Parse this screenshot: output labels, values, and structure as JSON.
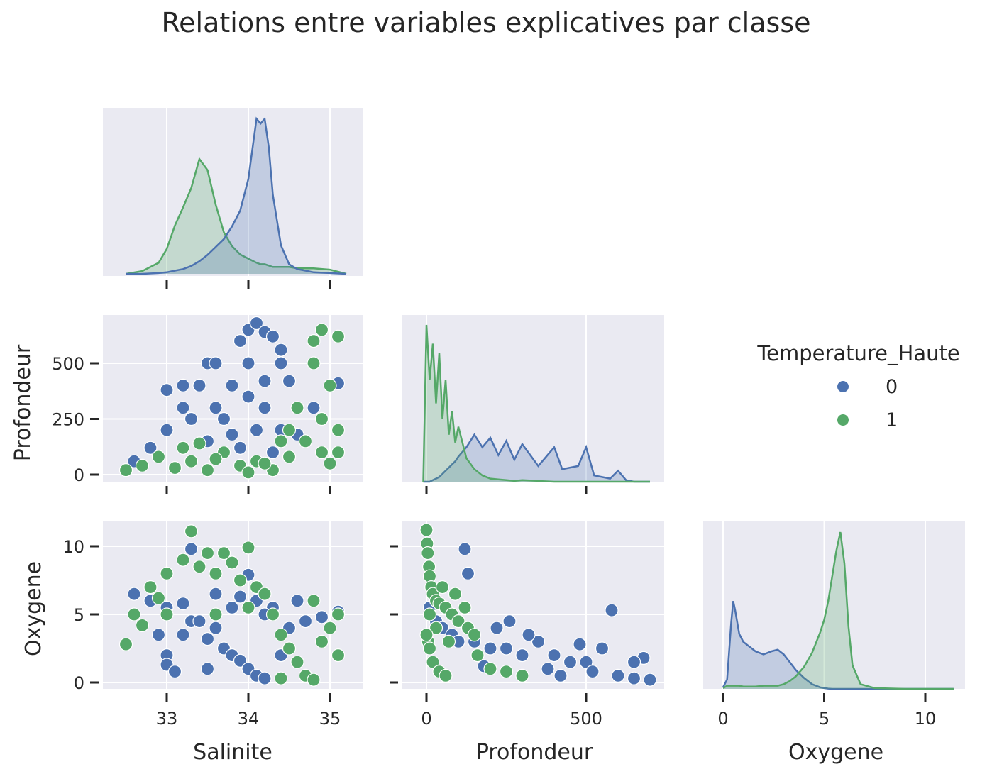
{
  "chart_data": {
    "type": "scatter",
    "subtype": "pairplot",
    "title": "Relations entre variables explicatives par classe",
    "variables": [
      "Salinite",
      "Profondeur",
      "Oxygene"
    ],
    "hue": "Temperature_Haute",
    "legend": {
      "title": "Temperature_Haute",
      "position": "right",
      "entries": [
        "0",
        "1"
      ]
    },
    "colors": {
      "0": "#4c72b0",
      "1": "#55a868",
      "background": "#eaeaf2",
      "grid": "#ffffff"
    },
    "grid": true,
    "diagonal": "kde",
    "corner": true,
    "axes": {
      "Salinite": {
        "label": "Salinite",
        "range": [
          32.4,
          35.2
        ],
        "ticks": [
          "33",
          "34",
          "35"
        ]
      },
      "Profondeur": {
        "label": "Profondeur",
        "range": [
          -50,
          715
        ],
        "ticks": [
          "0",
          "250",
          "500"
        ],
        "xticks": [
          "0",
          "500"
        ]
      },
      "Oxygene": {
        "label": "Oxygene",
        "range": [
          -0.6,
          11.7
        ],
        "ticks": [
          "0",
          "5",
          "10"
        ]
      }
    },
    "kde": {
      "Salinite": {
        "x": [
          32.5,
          32.7,
          32.9,
          33.0,
          33.1,
          33.2,
          33.3,
          33.4,
          33.5,
          33.6,
          33.7,
          33.8,
          33.9,
          34.0,
          34.1,
          34.15,
          34.2,
          34.25,
          34.3,
          34.4,
          34.5,
          34.6,
          34.7,
          34.8,
          35.0,
          35.2
        ],
        "class_0": [
          0,
          0,
          0.005,
          0.01,
          0.02,
          0.03,
          0.05,
          0.08,
          0.12,
          0.17,
          0.22,
          0.3,
          0.4,
          0.6,
          0.98,
          0.95,
          0.98,
          0.8,
          0.5,
          0.18,
          0.06,
          0.03,
          0.02,
          0.01,
          0.005,
          0
        ],
        "class_1": [
          0,
          0.02,
          0.08,
          0.18,
          0.35,
          0.48,
          0.62,
          0.83,
          0.75,
          0.5,
          0.3,
          0.2,
          0.14,
          0.11,
          0.08,
          0.07,
          0.07,
          0.06,
          0.05,
          0.05,
          0.05,
          0.04,
          0.04,
          0.04,
          0.03,
          0
        ]
      },
      "Profondeur": {
        "x": [
          -10,
          0,
          10,
          20,
          30,
          40,
          50,
          60,
          70,
          80,
          90,
          100,
          125,
          150,
          175,
          200,
          225,
          250,
          275,
          300,
          350,
          400,
          425,
          450,
          475,
          500,
          525,
          550,
          575,
          600,
          625,
          650,
          700
        ],
        "class_0": [
          0,
          0,
          0,
          0.01,
          0.02,
          0.03,
          0.05,
          0.07,
          0.09,
          0.11,
          0.13,
          0.16,
          0.22,
          0.3,
          0.22,
          0.28,
          0.17,
          0.26,
          0.14,
          0.24,
          0.1,
          0.22,
          0.08,
          0.09,
          0.1,
          0.22,
          0.04,
          0.03,
          0.02,
          0.07,
          0.01,
          0,
          0
        ],
        "class_1": [
          0,
          1.0,
          0.65,
          0.88,
          0.5,
          0.82,
          0.4,
          0.65,
          0.3,
          0.45,
          0.25,
          0.35,
          0.15,
          0.08,
          0.04,
          0.02,
          0.015,
          0.01,
          0.005,
          0.01,
          0.005,
          0,
          0,
          0,
          0,
          0,
          0,
          0,
          0,
          0,
          0,
          0,
          0
        ]
      },
      "Oxygene": {
        "x": [
          0,
          0.2,
          0.4,
          0.5,
          0.6,
          0.8,
          1.0,
          1.3,
          1.6,
          2.0,
          2.4,
          2.7,
          3.0,
          3.3,
          3.6,
          4.0,
          4.4,
          4.8,
          5.0,
          5.2,
          5.4,
          5.6,
          5.8,
          6.0,
          6.2,
          6.4,
          6.8,
          7.5,
          9.0,
          11.4
        ],
        "class_0": [
          0.01,
          0.06,
          0.42,
          0.56,
          0.5,
          0.35,
          0.3,
          0.27,
          0.24,
          0.22,
          0.24,
          0.25,
          0.22,
          0.17,
          0.12,
          0.07,
          0.03,
          0.01,
          0.005,
          0.002,
          0,
          0,
          0,
          0,
          0,
          0,
          0,
          0,
          0,
          0
        ],
        "class_1": [
          0.005,
          0.02,
          0.02,
          0.02,
          0.02,
          0.02,
          0.015,
          0.015,
          0.015,
          0.02,
          0.02,
          0.02,
          0.03,
          0.05,
          0.08,
          0.14,
          0.23,
          0.36,
          0.44,
          0.56,
          0.72,
          0.88,
          1.0,
          0.8,
          0.4,
          0.15,
          0.03,
          0.005,
          0,
          0
        ]
      }
    },
    "scatter": {
      "Salinite_vs_Profondeur": {
        "class_0": [
          [
            32.6,
            60
          ],
          [
            32.8,
            120
          ],
          [
            33.0,
            200
          ],
          [
            33.0,
            380
          ],
          [
            33.2,
            300
          ],
          [
            33.2,
            400
          ],
          [
            33.4,
            400
          ],
          [
            33.5,
            500
          ],
          [
            33.6,
            500
          ],
          [
            33.6,
            300
          ],
          [
            33.8,
            400
          ],
          [
            33.9,
            600
          ],
          [
            34.0,
            500
          ],
          [
            34.0,
            650
          ],
          [
            34.1,
            680
          ],
          [
            34.2,
            640
          ],
          [
            34.3,
            620
          ],
          [
            34.4,
            500
          ],
          [
            34.5,
            420
          ],
          [
            34.2,
            300
          ],
          [
            34.1,
            200
          ],
          [
            34.4,
            200
          ],
          [
            33.7,
            250
          ],
          [
            33.5,
            150
          ],
          [
            33.9,
            120
          ],
          [
            34.3,
            100
          ],
          [
            34.8,
            300
          ],
          [
            35.1,
            410
          ],
          [
            34.6,
            180
          ],
          [
            34.0,
            350
          ],
          [
            34.2,
            420
          ],
          [
            34.4,
            560
          ],
          [
            33.3,
            250
          ],
          [
            33.8,
            180
          ]
        ],
        "class_1": [
          [
            32.5,
            20
          ],
          [
            32.7,
            40
          ],
          [
            32.9,
            80
          ],
          [
            33.1,
            30
          ],
          [
            33.3,
            60
          ],
          [
            33.5,
            20
          ],
          [
            33.7,
            100
          ],
          [
            33.9,
            40
          ],
          [
            34.1,
            60
          ],
          [
            34.3,
            20
          ],
          [
            34.5,
            80
          ],
          [
            34.7,
            150
          ],
          [
            34.9,
            250
          ],
          [
            35.0,
            400
          ],
          [
            35.1,
            620
          ],
          [
            34.8,
            500
          ],
          [
            34.6,
            300
          ],
          [
            34.5,
            200
          ],
          [
            34.9,
            100
          ],
          [
            35.1,
            200
          ],
          [
            33.2,
            120
          ],
          [
            33.6,
            70
          ],
          [
            34.0,
            10
          ],
          [
            34.8,
            600
          ],
          [
            34.9,
            650
          ],
          [
            35.0,
            50
          ],
          [
            34.4,
            150
          ],
          [
            33.4,
            140
          ],
          [
            34.2,
            50
          ],
          [
            35.1,
            100
          ]
        ]
      },
      "Salinite_vs_Oxygene": {
        "class_0": [
          [
            32.6,
            6.5
          ],
          [
            32.8,
            6.0
          ],
          [
            33.0,
            5.5
          ],
          [
            33.0,
            2.0
          ],
          [
            33.0,
            1.3
          ],
          [
            33.2,
            3.5
          ],
          [
            33.3,
            4.5
          ],
          [
            33.3,
            9.8
          ],
          [
            33.4,
            4.5
          ],
          [
            33.5,
            3.2
          ],
          [
            33.6,
            4.0
          ],
          [
            33.7,
            2.5
          ],
          [
            33.8,
            2.0
          ],
          [
            33.9,
            1.6
          ],
          [
            34.0,
            1.0
          ],
          [
            34.1,
            0.5
          ],
          [
            34.2,
            0.3
          ],
          [
            34.4,
            2.0
          ],
          [
            34.5,
            4.0
          ],
          [
            34.7,
            4.5
          ],
          [
            34.9,
            4.8
          ],
          [
            35.1,
            5.2
          ],
          [
            34.3,
            5.5
          ],
          [
            34.1,
            6.0
          ],
          [
            33.9,
            6.3
          ],
          [
            34.0,
            7.9
          ],
          [
            33.6,
            6.5
          ],
          [
            33.2,
            5.8
          ],
          [
            34.6,
            6.0
          ],
          [
            34.2,
            5.0
          ],
          [
            33.8,
            5.5
          ],
          [
            32.9,
            3.5
          ],
          [
            33.1,
            0.8
          ],
          [
            33.5,
            1.0
          ]
        ],
        "class_1": [
          [
            32.5,
            2.8
          ],
          [
            32.6,
            5.0
          ],
          [
            32.8,
            7.0
          ],
          [
            33.0,
            8.0
          ],
          [
            33.2,
            9.0
          ],
          [
            33.3,
            11.1
          ],
          [
            33.4,
            8.5
          ],
          [
            33.5,
            9.5
          ],
          [
            33.6,
            8.0
          ],
          [
            33.7,
            9.5
          ],
          [
            33.8,
            8.8
          ],
          [
            33.9,
            7.5
          ],
          [
            34.0,
            9.9
          ],
          [
            34.1,
            7.0
          ],
          [
            34.2,
            6.5
          ],
          [
            34.3,
            5.0
          ],
          [
            34.4,
            3.5
          ],
          [
            34.5,
            2.5
          ],
          [
            34.6,
            1.5
          ],
          [
            34.7,
            0.5
          ],
          [
            34.8,
            0.2
          ],
          [
            34.9,
            3.0
          ],
          [
            35.0,
            4.0
          ],
          [
            35.1,
            5.0
          ],
          [
            34.8,
            6.0
          ],
          [
            33.0,
            5.0
          ],
          [
            32.7,
            4.2
          ],
          [
            34.0,
            5.5
          ],
          [
            33.6,
            5.0
          ],
          [
            35.1,
            2.0
          ],
          [
            34.4,
            0.3
          ],
          [
            32.9,
            6.2
          ]
        ]
      },
      "Profondeur_vs_Oxygene": {
        "class_0": [
          [
            10,
            5.5
          ],
          [
            30,
            4.5
          ],
          [
            50,
            4.0
          ],
          [
            80,
            3.5
          ],
          [
            100,
            3.0
          ],
          [
            120,
            9.8
          ],
          [
            130,
            8.0
          ],
          [
            150,
            3.0
          ],
          [
            200,
            2.5
          ],
          [
            250,
            2.5
          ],
          [
            300,
            2.0
          ],
          [
            350,
            3.0
          ],
          [
            400,
            2.0
          ],
          [
            450,
            1.5
          ],
          [
            500,
            1.5
          ],
          [
            520,
            0.8
          ],
          [
            580,
            5.3
          ],
          [
            600,
            0.5
          ],
          [
            650,
            0.3
          ],
          [
            700,
            0.2
          ],
          [
            680,
            1.8
          ],
          [
            550,
            2.5
          ],
          [
            480,
            2.8
          ],
          [
            420,
            0.5
          ],
          [
            380,
            1.0
          ],
          [
            320,
            3.5
          ],
          [
            260,
            4.5
          ],
          [
            220,
            4.0
          ],
          [
            180,
            1.2
          ],
          [
            650,
            1.5
          ]
        ],
        "class_1": [
          [
            0,
            11.2
          ],
          [
            2,
            10.2
          ],
          [
            4,
            9.5
          ],
          [
            8,
            8.5
          ],
          [
            10,
            7.8
          ],
          [
            15,
            7.0
          ],
          [
            20,
            6.5
          ],
          [
            30,
            6.0
          ],
          [
            40,
            5.8
          ],
          [
            60,
            5.5
          ],
          [
            80,
            5.0
          ],
          [
            100,
            4.5
          ],
          [
            130,
            4.0
          ],
          [
            150,
            3.5
          ],
          [
            5,
            3.0
          ],
          [
            10,
            2.5
          ],
          [
            20,
            1.5
          ],
          [
            40,
            0.8
          ],
          [
            60,
            0.5
          ],
          [
            30,
            4.0
          ],
          [
            70,
            3.0
          ],
          [
            90,
            6.5
          ],
          [
            120,
            5.5
          ],
          [
            200,
            1.0
          ],
          [
            250,
            0.8
          ],
          [
            300,
            0.5
          ],
          [
            160,
            2.0
          ],
          [
            50,
            7.0
          ],
          [
            10,
            5.0
          ],
          [
            0,
            3.5
          ]
        ]
      }
    }
  }
}
